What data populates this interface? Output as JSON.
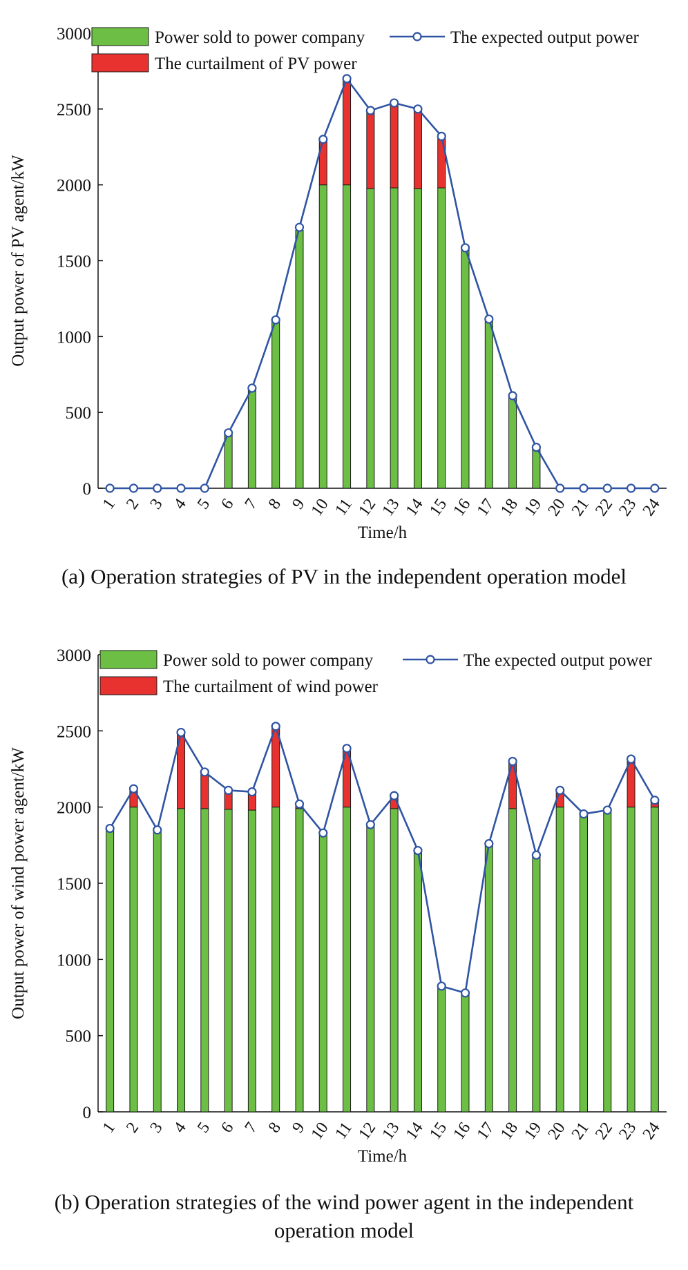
{
  "chart_data": [
    {
      "type": "bar",
      "title": "",
      "xlabel": "Time/h",
      "ylabel": "Output power of PV agent/kW",
      "ylim": [
        0,
        3000
      ],
      "yticks": [
        "0",
        "500",
        "1000",
        "1500",
        "2000",
        "2500",
        "3000"
      ],
      "categories": [
        "1",
        "2",
        "3",
        "4",
        "5",
        "6",
        "7",
        "8",
        "9",
        "10",
        "11",
        "12",
        "13",
        "14",
        "15",
        "16",
        "17",
        "18",
        "19",
        "20",
        "21",
        "22",
        "23",
        "24"
      ],
      "series": [
        {
          "name": "Power sold to power company",
          "kind": "bar",
          "color": "#6cbf44",
          "values": [
            0,
            0,
            0,
            0,
            0,
            350,
            650,
            1100,
            1700,
            2000,
            2000,
            1975,
            1980,
            1975,
            1980,
            1580,
            1100,
            600,
            260,
            0,
            0,
            0,
            0,
            0
          ]
        },
        {
          "name": "The curtailment of PV power",
          "kind": "bar-stack",
          "color": "#e8322f",
          "values": [
            0,
            0,
            0,
            0,
            0,
            0,
            0,
            0,
            0,
            300,
            700,
            515,
            560,
            525,
            340,
            0,
            0,
            0,
            0,
            0,
            0,
            0,
            0,
            0
          ]
        },
        {
          "name": "The expected output power",
          "kind": "line",
          "color": "#2f54a3",
          "values": [
            0,
            0,
            0,
            0,
            0,
            365,
            660,
            1110,
            1720,
            2300,
            2700,
            2490,
            2540,
            2500,
            2320,
            1585,
            1115,
            610,
            270,
            0,
            0,
            0,
            0,
            0
          ]
        }
      ],
      "legend": "top",
      "caption": "(a) Operation strategies of PV in the independent operation model"
    },
    {
      "type": "bar",
      "title": "",
      "xlabel": "Time/h",
      "ylabel": "Output power of wind power agent/kW",
      "ylim": [
        0,
        3000
      ],
      "yticks": [
        "0",
        "500",
        "1000",
        "1500",
        "2000",
        "2500",
        "3000"
      ],
      "categories": [
        "1",
        "2",
        "3",
        "4",
        "5",
        "6",
        "7",
        "8",
        "9",
        "10",
        "11",
        "12",
        "13",
        "14",
        "15",
        "16",
        "17",
        "18",
        "19",
        "20",
        "21",
        "22",
        "23",
        "24"
      ],
      "series": [
        {
          "name": "Power sold to power company",
          "kind": "bar",
          "color": "#6cbf44",
          "values": [
            1860,
            2000,
            1850,
            1990,
            1990,
            1985,
            1980,
            2000,
            1990,
            1830,
            2000,
            1880,
            1990,
            1710,
            820,
            780,
            1760,
            1990,
            1680,
            2000,
            1950,
            1980,
            2000,
            2000
          ]
        },
        {
          "name": "The curtailment of wind power",
          "kind": "bar-stack",
          "color": "#e8322f",
          "values": [
            0,
            120,
            0,
            500,
            240,
            125,
            120,
            530,
            30,
            0,
            385,
            0,
            85,
            0,
            0,
            0,
            0,
            310,
            0,
            110,
            0,
            0,
            315,
            45
          ]
        },
        {
          "name": "The expected output power",
          "kind": "line",
          "color": "#2f54a3",
          "values": [
            1860,
            2120,
            1850,
            2490,
            2230,
            2110,
            2100,
            2530,
            2020,
            1830,
            2385,
            1885,
            2075,
            1715,
            825,
            780,
            1760,
            2300,
            1685,
            2110,
            1955,
            1980,
            2315,
            2045
          ]
        }
      ],
      "legend": "top",
      "caption_lines": [
        "(b) Operation strategies of the wind power agent in the independent",
        "operation model"
      ]
    }
  ]
}
